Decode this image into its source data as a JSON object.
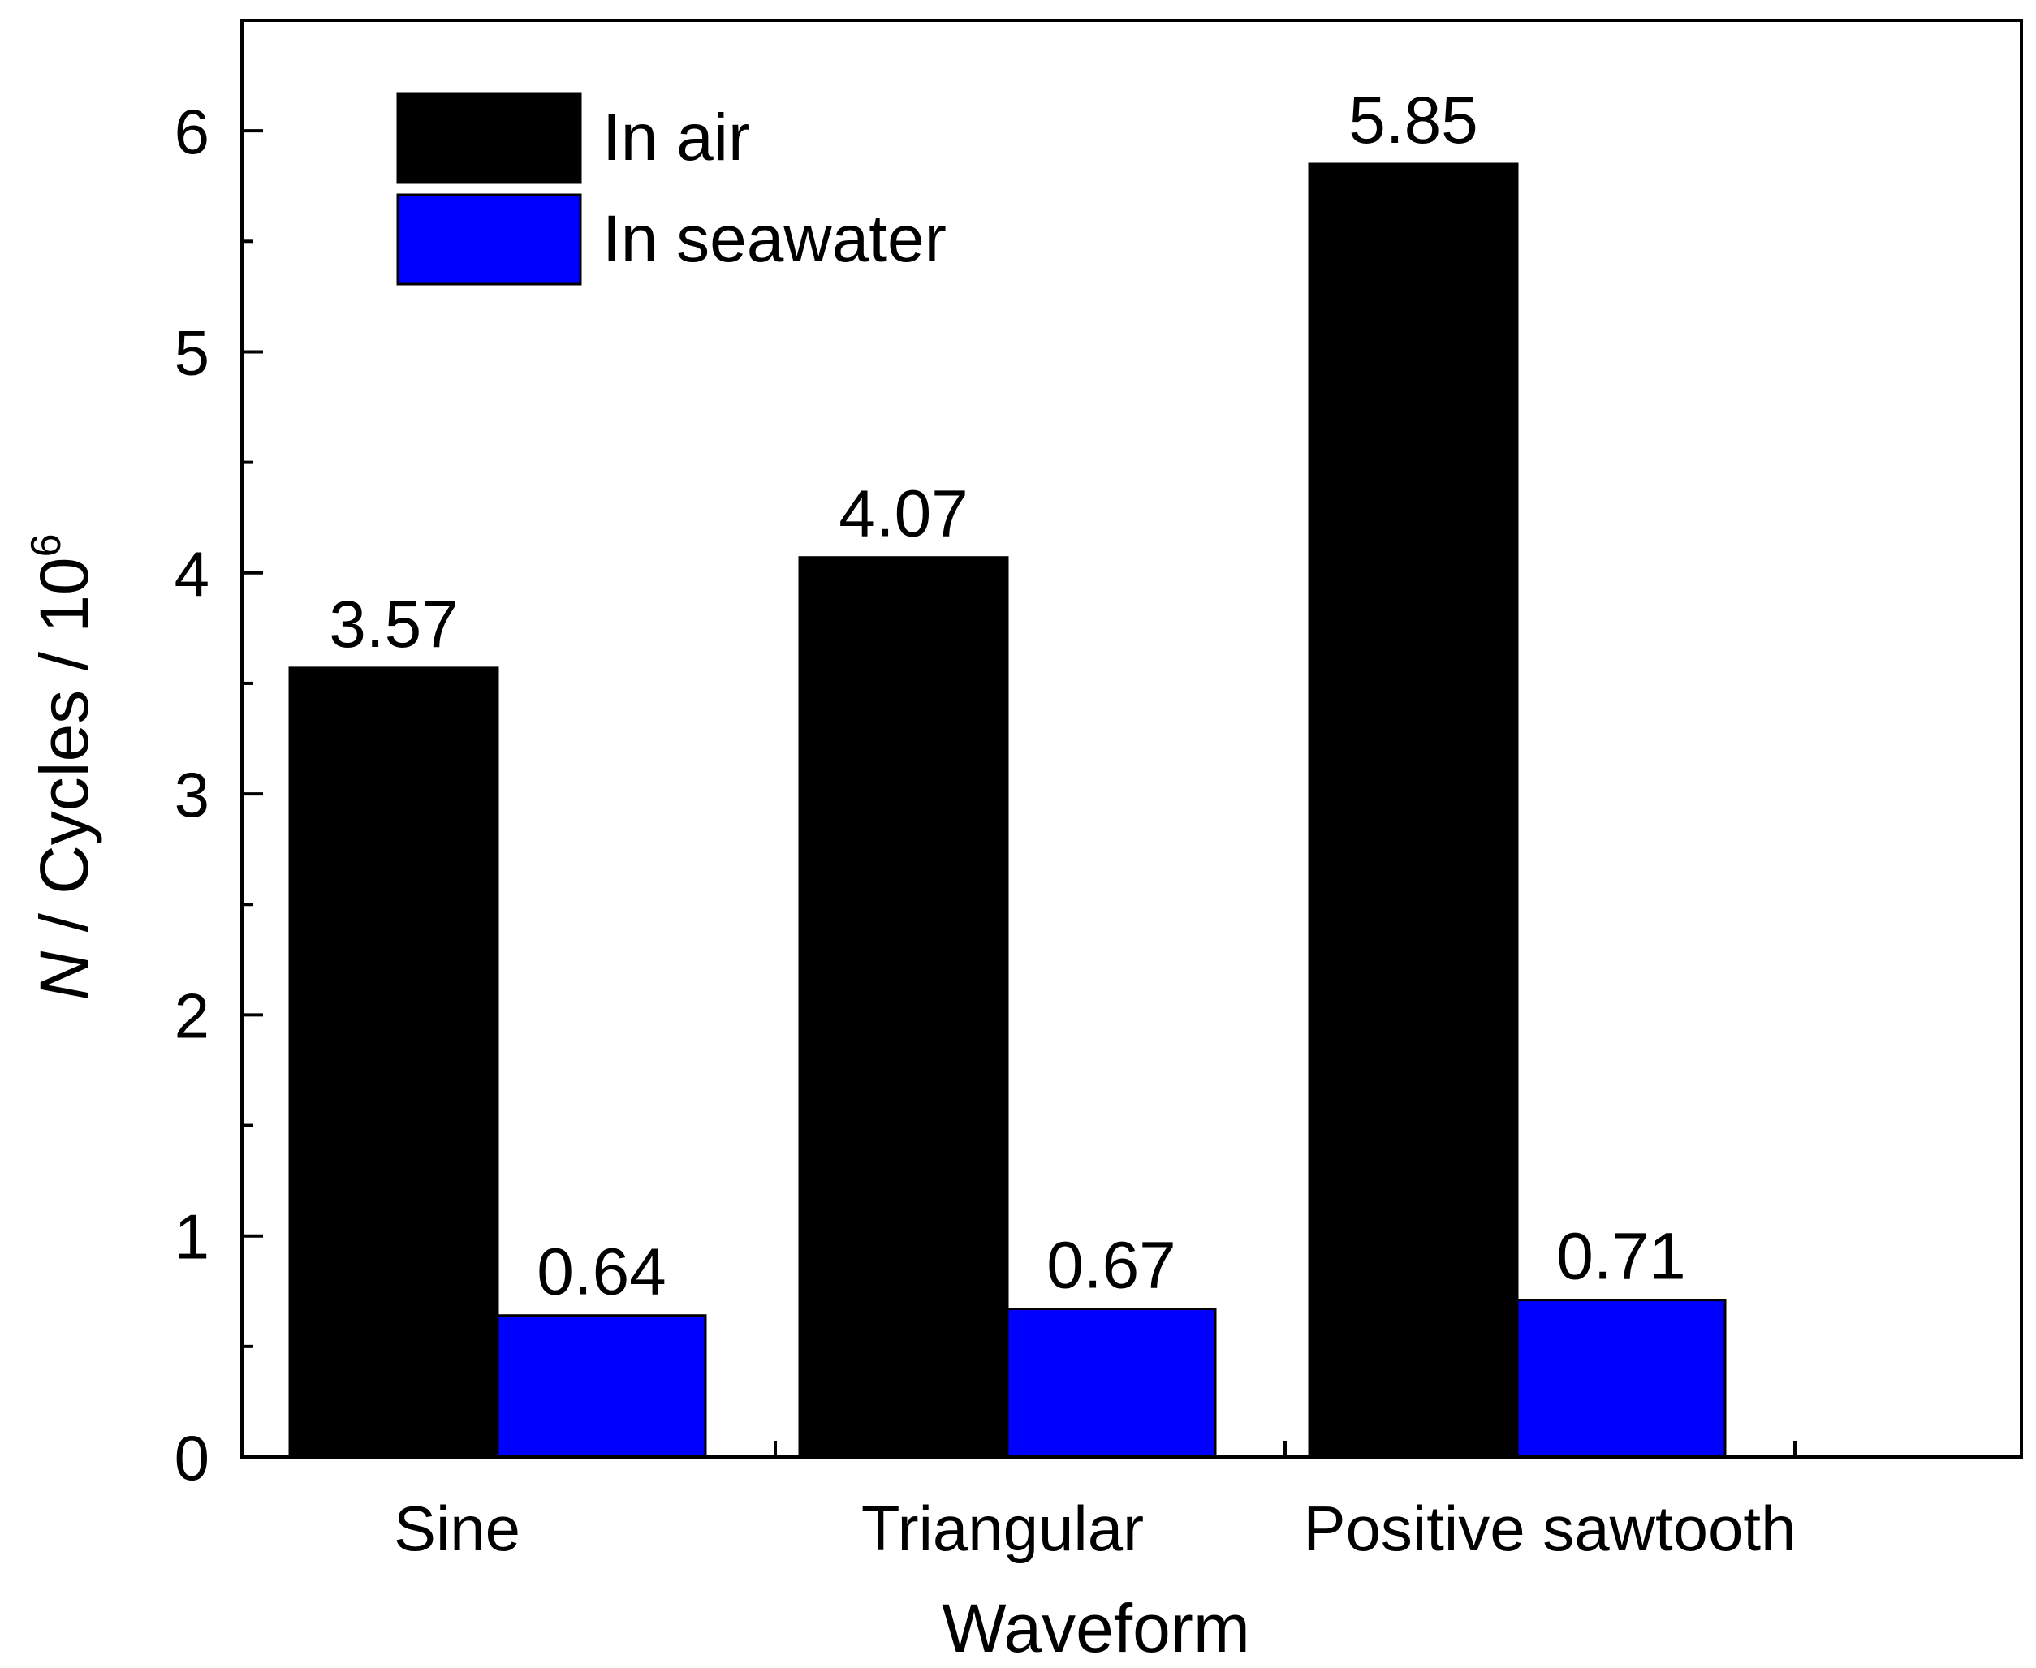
{
  "chart_data": {
    "type": "bar",
    "title": "",
    "xlabel": "Waveform",
    "ylabel_italic": "N",
    "ylabel_rest": " / Cycles / 10",
    "ylabel_sup": "6",
    "categories": [
      "Sine",
      "Triangular",
      "Positive sawtooth"
    ],
    "series": [
      {
        "name": "In air",
        "color": "#000000",
        "values": [
          3.57,
          4.07,
          5.85
        ],
        "labels": [
          "3.57",
          "4.07",
          "5.85"
        ]
      },
      {
        "name": "In seawater",
        "color": "#0000ff",
        "values": [
          0.64,
          0.67,
          0.71
        ],
        "labels": [
          "0.64",
          "0.67",
          "0.71"
        ]
      }
    ],
    "ylim": [
      0,
      6.5
    ],
    "yticks": [
      0,
      1,
      2,
      3,
      4,
      5,
      6
    ],
    "yminor_step": 0.5,
    "legend_position": "top-left",
    "grid": false
  }
}
